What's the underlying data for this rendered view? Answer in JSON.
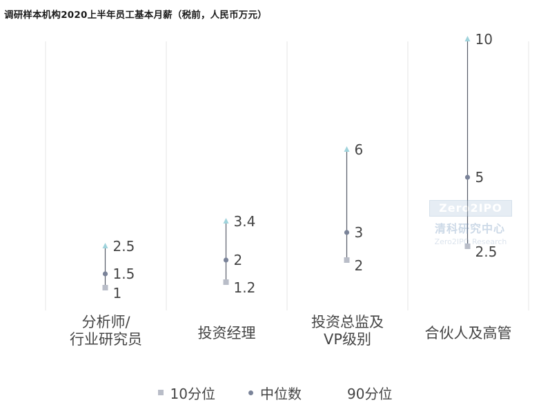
{
  "title": "调研样本机构2020上半年员工基本月薪（税前，人民币万元）",
  "chart_data": {
    "type": "range-dot",
    "title": "调研样本机构2020上半年员工基本月薪（税前，人民币万元）",
    "categories": [
      [
        "分析师/",
        "行业研究员"
      ],
      [
        "投资经理"
      ],
      [
        "投资总监及",
        "VP级别"
      ],
      [
        "合伙人及高管"
      ]
    ],
    "series": [
      {
        "name": "10分位",
        "values": [
          1,
          1.2,
          2,
          2.5
        ],
        "marker": "square",
        "color": "#b9bdc8"
      },
      {
        "name": "中位数",
        "values": [
          1.5,
          2,
          3,
          5
        ],
        "marker": "circle",
        "color": "#7a8399"
      },
      {
        "name": "90分位",
        "values": [
          2.5,
          3.4,
          6,
          10
        ],
        "marker": "triangle",
        "color": "#9fd3dc"
      }
    ],
    "value_labels": [
      [
        "1",
        "1.5",
        "2.5"
      ],
      [
        "1.2",
        "2",
        "3.4"
      ],
      [
        "2",
        "3",
        "6"
      ],
      [
        "2.5",
        "5",
        "10"
      ]
    ],
    "ylim": [
      0,
      10.6
    ],
    "grid": false,
    "legend": "bottom-center",
    "colors": {
      "range_line": "#555a66",
      "separator": "#e6e6e6"
    }
  },
  "legend": {
    "items": [
      {
        "label": "10分位",
        "marker": "square"
      },
      {
        "label": "中位数",
        "marker": "circle"
      },
      {
        "label": "90分位",
        "marker": "triangle"
      }
    ]
  },
  "watermark": {
    "logo": "Zero2IPO",
    "cn": "清科研究中心",
    "en": "Zero2IPO Research"
  }
}
